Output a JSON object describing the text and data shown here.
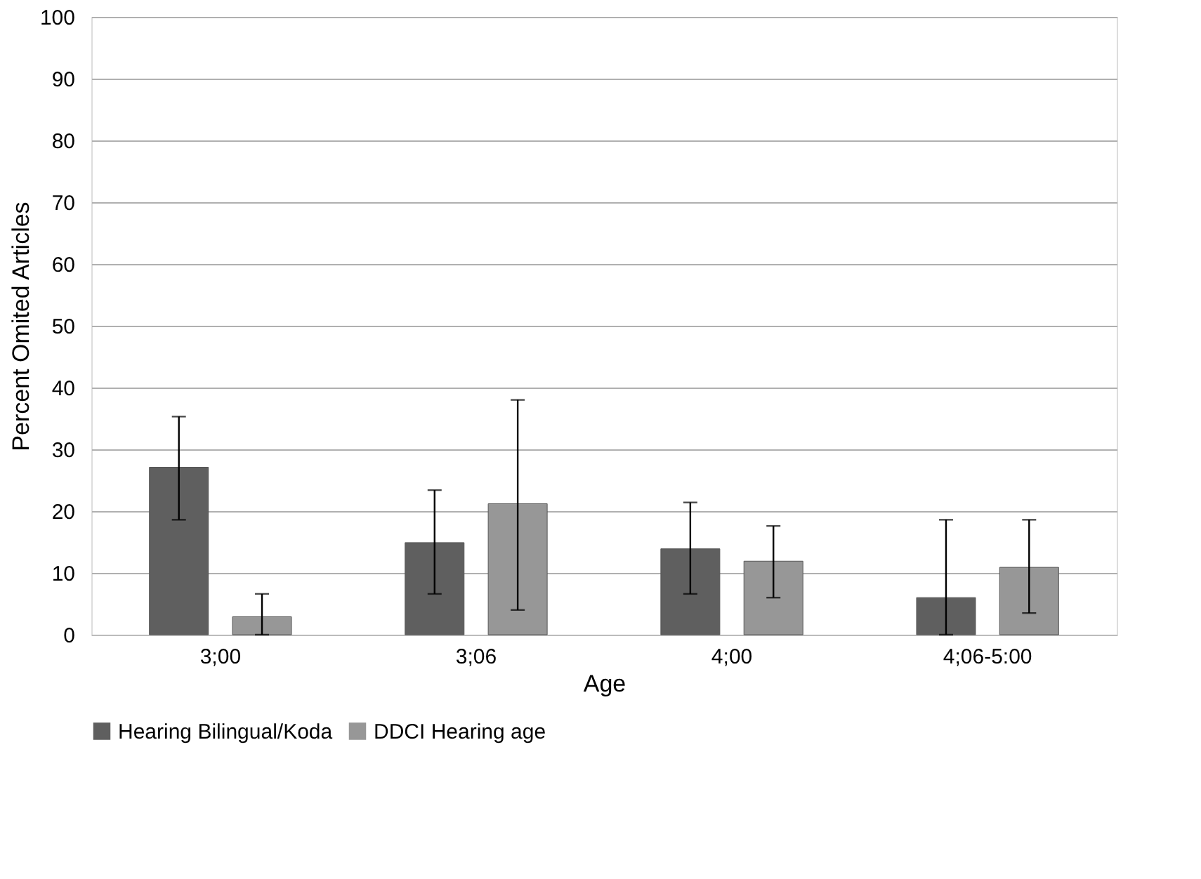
{
  "chart_data": {
    "type": "bar",
    "xlabel": "Age",
    "ylabel": "Percent Omited Articles",
    "categories": [
      "3;00",
      "3;06",
      "4;00",
      "4;06-5:00"
    ],
    "series": [
      {
        "name": "Hearing Bilingual/Koda",
        "color": "#5f5f5f",
        "values": [
          27.1,
          14.9,
          13.9,
          6.0
        ],
        "errors": [
          [
            18.6,
            35.3
          ],
          [
            6.6,
            23.4
          ],
          [
            6.6,
            21.4
          ],
          [
            0,
            18.6
          ]
        ]
      },
      {
        "name": "DDCI Hearing age",
        "color": "#979797",
        "values": [
          2.9,
          21.2,
          11.9,
          10.9
        ],
        "errors": [
          [
            0,
            6.6
          ],
          [
            4.0,
            38.0
          ],
          [
            6.0,
            17.6
          ],
          [
            3.5,
            18.6
          ]
        ]
      }
    ],
    "ylim": [
      0,
      100
    ],
    "yticks": [
      0,
      10,
      20,
      30,
      40,
      50,
      60,
      70,
      80,
      90,
      100
    ],
    "grid": "y",
    "legend": "bottom"
  }
}
